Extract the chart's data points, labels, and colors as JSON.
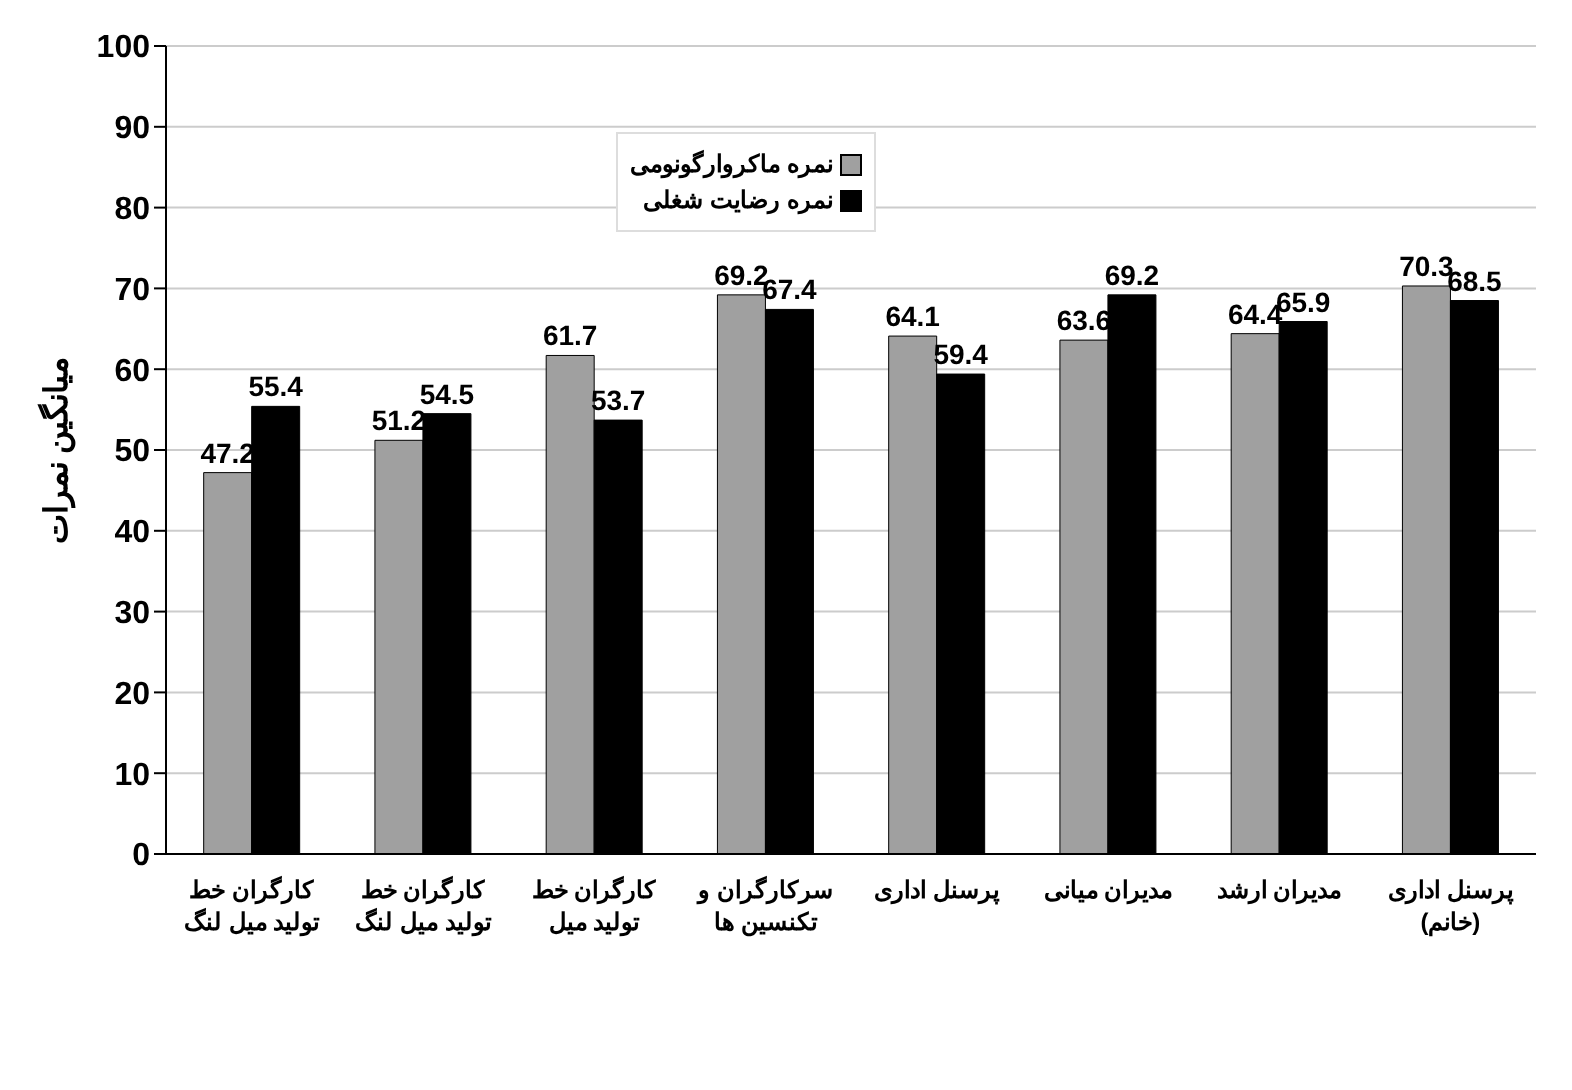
{
  "chart_data": {
    "type": "bar",
    "ylabel": "میانگین نمرات",
    "categories": [
      "کارگران خط\nتولید میل لنگ",
      "کارگران خط\nتولید میل لنگ",
      "کارگران خط\nتولید میل",
      "سرکارگران و\nتکنسین ها",
      "پرسنل اداری",
      "مدیران میانی",
      "مدیران ارشد",
      "پرسنل اداری\n(خانم)"
    ],
    "series": [
      {
        "name": "نمره ماکروارگونومی",
        "color": "#a0a0a0",
        "values": [
          47.2,
          51.2,
          61.7,
          69.2,
          64.1,
          63.6,
          64.4,
          70.3
        ]
      },
      {
        "name": "نمره رضایت شغلی",
        "color": "#000000",
        "values": [
          55.4,
          54.5,
          53.7,
          67.4,
          59.4,
          69.2,
          65.9,
          68.5
        ]
      }
    ],
    "ylim": [
      0,
      100
    ],
    "yticks": [
      0,
      10,
      20,
      30,
      40,
      50,
      60,
      70,
      80,
      90,
      100
    ],
    "grid": "y",
    "legend": "top",
    "data_labels": true
  }
}
